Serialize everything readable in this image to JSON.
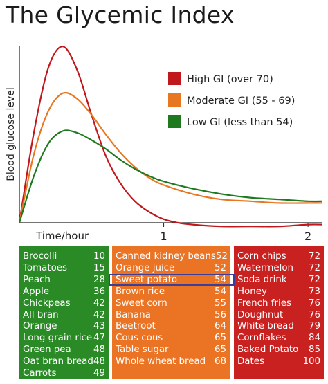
{
  "title": "The Glycemic Index",
  "colors": {
    "high": "#c0181d",
    "moderate": "#e87722",
    "low": "#1f7a1f",
    "green_box": "#2a8a26",
    "orange_box": "#ea7424",
    "red_box": "#c8211f",
    "highlight": "#3b3f9a"
  },
  "chart_data": {
    "type": "line",
    "title": "The Glycemic Index",
    "xlabel": "Time/hour",
    "ylabel": "Blood glucose level",
    "x_ticks": [
      "1",
      "2"
    ],
    "xlim": [
      0,
      2.1
    ],
    "ylim": [
      0,
      100
    ],
    "legend_position": "top-right",
    "series": [
      {
        "name": "High GI (over 70)",
        "color": "#c0181d",
        "x": [
          0,
          0.1,
          0.2,
          0.3,
          0.4,
          0.5,
          0.6,
          0.7,
          0.8,
          0.9,
          1.0,
          1.1,
          1.2,
          1.4,
          1.6,
          1.8,
          2.0,
          2.1
        ],
        "y": [
          0,
          50,
          86,
          98,
          85,
          60,
          37,
          22,
          12,
          6,
          2,
          0,
          -1,
          -2,
          -2,
          -2,
          -1,
          -1
        ]
      },
      {
        "name": "Moderate GI (55 - 69)",
        "color": "#e87722",
        "x": [
          0,
          0.1,
          0.2,
          0.3,
          0.4,
          0.5,
          0.6,
          0.7,
          0.8,
          0.9,
          1.0,
          1.2,
          1.4,
          1.6,
          1.8,
          2.0,
          2.1
        ],
        "y": [
          0,
          38,
          62,
          72,
          69,
          60,
          49,
          39,
          31,
          25,
          21,
          16,
          13,
          12,
          11,
          11,
          11
        ]
      },
      {
        "name": "Low GI (less than 54)",
        "color": "#1f7a1f",
        "x": [
          0,
          0.1,
          0.2,
          0.3,
          0.4,
          0.5,
          0.6,
          0.7,
          0.8,
          0.9,
          1.0,
          1.2,
          1.4,
          1.6,
          1.8,
          2.0,
          2.1
        ],
        "y": [
          0,
          26,
          44,
          51,
          50,
          46,
          41,
          35,
          30,
          26,
          23,
          19,
          16,
          14,
          13,
          12,
          12
        ]
      }
    ]
  },
  "lists": {
    "low": [
      {
        "food": "Brocolli",
        "gi": "10"
      },
      {
        "food": "Tomatoes",
        "gi": "15"
      },
      {
        "food": "Peach",
        "gi": "28"
      },
      {
        "food": "Apple",
        "gi": "36"
      },
      {
        "food": "Chickpeas",
        "gi": "42"
      },
      {
        "food": "All bran",
        "gi": "42"
      },
      {
        "food": "Orange",
        "gi": "43"
      },
      {
        "food": "Long grain rice",
        "gi": "47"
      },
      {
        "food": "Green pea",
        "gi": "48"
      },
      {
        "food": "Oat bran bread",
        "gi": "48"
      },
      {
        "food": "Carrots",
        "gi": "49"
      }
    ],
    "moderate": [
      {
        "food": "Canned kidney beans",
        "gi": "52"
      },
      {
        "food": "Orange juice",
        "gi": "52"
      },
      {
        "food": "Sweet potato",
        "gi": "54"
      },
      {
        "food": "Brown rice",
        "gi": "54"
      },
      {
        "food": "Sweet corn",
        "gi": "55"
      },
      {
        "food": "Banana",
        "gi": "56"
      },
      {
        "food": "Beetroot",
        "gi": "64"
      },
      {
        "food": "Cous cous",
        "gi": "65"
      },
      {
        "food": "Table sugar",
        "gi": "65"
      },
      {
        "food": "Whole wheat bread",
        "gi": "68"
      }
    ],
    "high": [
      {
        "food": "Corn chips",
        "gi": "72"
      },
      {
        "food": "Watermelon",
        "gi": "72"
      },
      {
        "food": "Soda drink",
        "gi": "72"
      },
      {
        "food": "Honey",
        "gi": "73"
      },
      {
        "food": "French fries",
        "gi": "76"
      },
      {
        "food": "Doughnut",
        "gi": "76"
      },
      {
        "food": "White bread",
        "gi": "79"
      },
      {
        "food": "Cornflakes",
        "gi": "84"
      },
      {
        "food": "Baked Potato",
        "gi": "85"
      },
      {
        "food": "Dates",
        "gi": "100"
      }
    ]
  }
}
